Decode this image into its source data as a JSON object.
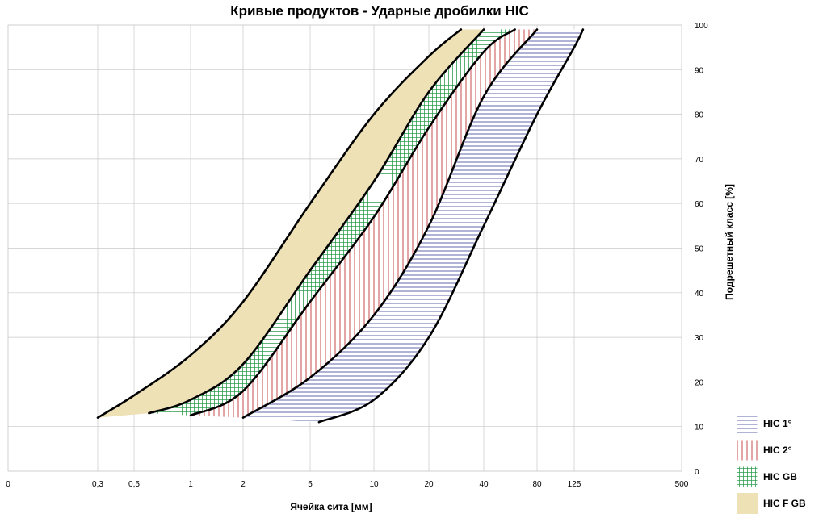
{
  "chart_data": {
    "type": "area",
    "title": "Кривые продуктов - Ударные дробилки HIC",
    "xlabel": "Ячейка сита [мм]",
    "ylabel": "Подрешетный класс [%]",
    "x_scale": "log",
    "xlim": [
      0.0001,
      500
    ],
    "ylim": [
      0,
      100
    ],
    "x_ticks": [
      "0",
      "0,3",
      "0,5",
      "1",
      "2",
      "5",
      "10",
      "20",
      "40",
      "80",
      "125",
      "500"
    ],
    "x_tick_values": [
      0.0001,
      0.3,
      0.5,
      1,
      2,
      5,
      10,
      20,
      40,
      80,
      125,
      500
    ],
    "y_ticks": [
      0,
      10,
      20,
      30,
      40,
      50,
      60,
      70,
      80,
      90,
      100
    ],
    "y_axis_side": "right",
    "grid": true,
    "legend_position": "bottom-right",
    "series": [
      {
        "name": "HIC F GB",
        "color": "#EDE1B5",
        "pattern": "solid",
        "upper": [
          [
            0.3,
            12
          ],
          [
            0.5,
            17
          ],
          [
            1,
            26
          ],
          [
            2,
            38
          ],
          [
            5,
            60
          ],
          [
            10,
            80
          ],
          [
            20,
            93
          ],
          [
            30,
            99
          ]
        ],
        "lower": [
          [
            0.6,
            13
          ],
          [
            1,
            16
          ],
          [
            2,
            24
          ],
          [
            5,
            45
          ],
          [
            10,
            65
          ],
          [
            20,
            85
          ],
          [
            40,
            99
          ]
        ]
      },
      {
        "name": "HIC GB",
        "color": "#2E9E50",
        "pattern": "grid",
        "upper": [
          [
            0.6,
            13
          ],
          [
            1,
            16
          ],
          [
            2,
            24
          ],
          [
            5,
            45
          ],
          [
            10,
            65
          ],
          [
            20,
            85
          ],
          [
            40,
            99
          ]
        ],
        "lower": [
          [
            1,
            12.5
          ],
          [
            2,
            18
          ],
          [
            5,
            38
          ],
          [
            10,
            57
          ],
          [
            20,
            77
          ],
          [
            40,
            94
          ],
          [
            60,
            99
          ]
        ]
      },
      {
        "name": "HIC 2°",
        "color": "#C0393B",
        "pattern": "vertical",
        "upper": [
          [
            1,
            12.5
          ],
          [
            2,
            18
          ],
          [
            5,
            38
          ],
          [
            10,
            57
          ],
          [
            20,
            77
          ],
          [
            40,
            94
          ],
          [
            60,
            99
          ]
        ],
        "lower": [
          [
            2,
            12
          ],
          [
            5,
            21
          ],
          [
            10,
            35
          ],
          [
            20,
            55
          ],
          [
            40,
            84
          ],
          [
            80,
            99
          ]
        ]
      },
      {
        "name": "HIC 1°",
        "color": "#3A3E9A",
        "pattern": "horizontal",
        "upper": [
          [
            2,
            12
          ],
          [
            5,
            21
          ],
          [
            10,
            35
          ],
          [
            20,
            55
          ],
          [
            40,
            84
          ],
          [
            80,
            99
          ]
        ],
        "lower": [
          [
            5.5,
            11
          ],
          [
            10,
            16
          ],
          [
            20,
            30
          ],
          [
            40,
            55
          ],
          [
            80,
            80
          ],
          [
            125,
            95
          ],
          [
            140,
            99
          ]
        ]
      }
    ]
  }
}
